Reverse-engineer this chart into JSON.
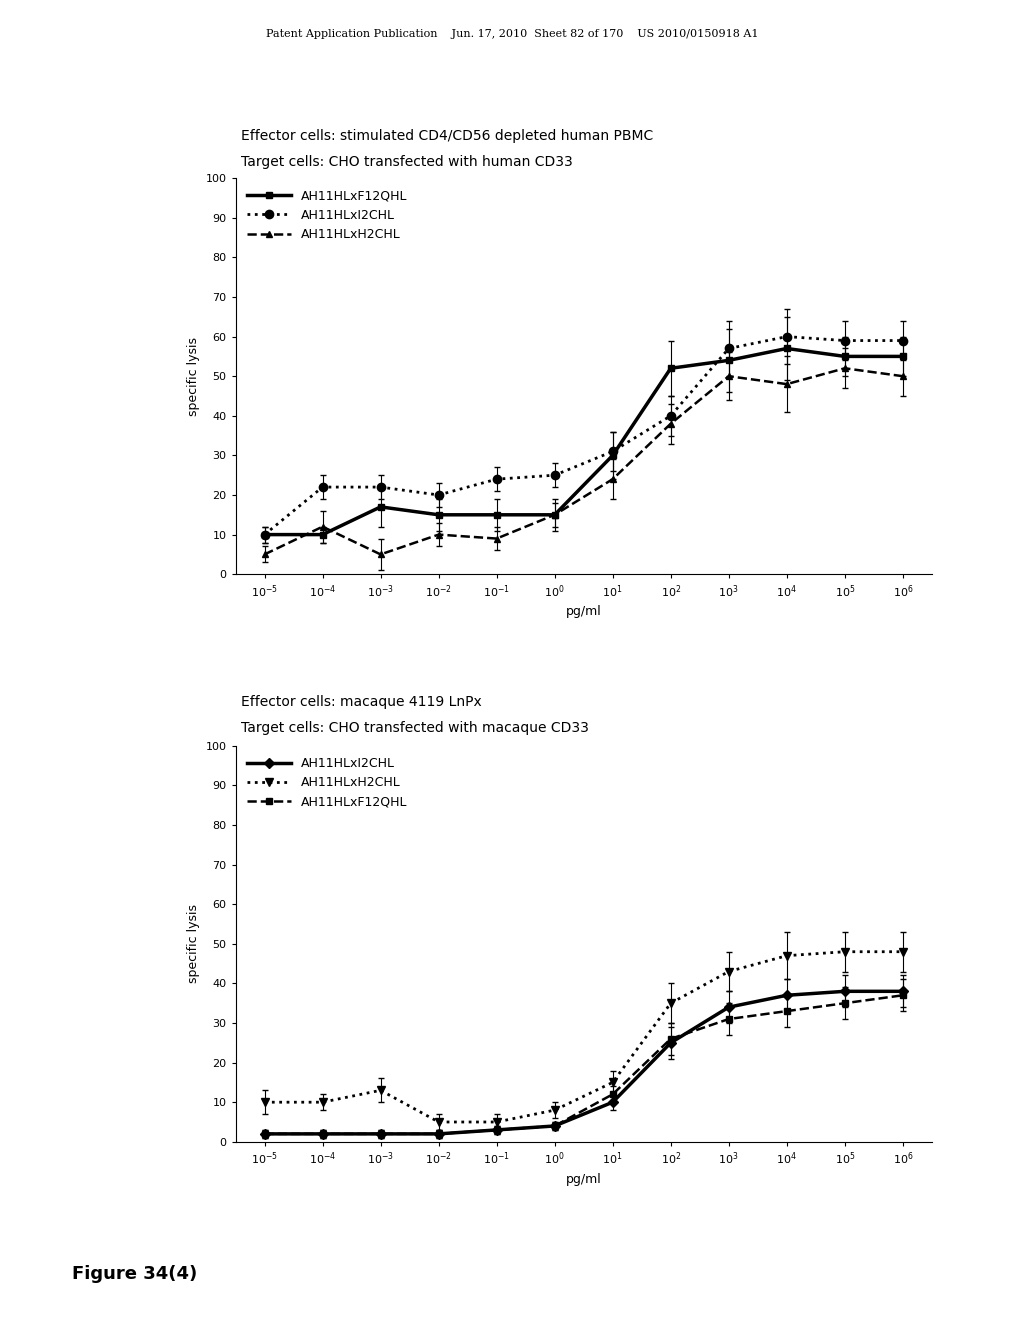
{
  "page_header": "Patent Application Publication    Jun. 17, 2010  Sheet 82 of 170    US 2010/0150918 A1",
  "figure_label": "Figure 34(4)",
  "plot1": {
    "title1": "Effector cells: stimulated CD4/CD56 depleted human PBMC",
    "title2": "Target cells: CHO transfected with human CD33",
    "ylabel": "specific lysis",
    "xlabel": "pg/ml",
    "ylim": [
      0,
      100
    ],
    "yticks": [
      0,
      10,
      20,
      30,
      40,
      50,
      60,
      70,
      80,
      90,
      100
    ],
    "series": [
      {
        "label": "AH11HLxF12QHL",
        "linestyle": "solid",
        "linewidth": 2.5,
        "marker": "s",
        "markersize": 5,
        "x": [
          -5,
          -4,
          -3,
          -2,
          -1,
          0,
          1,
          2,
          3,
          4,
          5,
          6
        ],
        "y": [
          10,
          10,
          17,
          15,
          15,
          15,
          30,
          52,
          54,
          57,
          55,
          55
        ],
        "yerr": [
          2,
          2,
          5,
          4,
          4,
          4,
          6,
          7,
          8,
          8,
          5,
          5
        ]
      },
      {
        "label": "AH11HLxI2CHL",
        "linestyle": "dotted",
        "linewidth": 2.0,
        "marker": "o",
        "markersize": 6,
        "x": [
          -5,
          -4,
          -3,
          -2,
          -1,
          0,
          1,
          2,
          3,
          4,
          5,
          6
        ],
        "y": [
          10,
          22,
          22,
          20,
          24,
          25,
          31,
          40,
          57,
          60,
          59,
          59
        ],
        "yerr": [
          2,
          3,
          3,
          3,
          3,
          3,
          5,
          5,
          7,
          7,
          5,
          5
        ]
      },
      {
        "label": "AH11HLxH2CHL",
        "linestyle": "dashed",
        "linewidth": 1.8,
        "marker": "^",
        "markersize": 5,
        "x": [
          -5,
          -4,
          -3,
          -2,
          -1,
          0,
          1,
          2,
          3,
          4,
          5,
          6
        ],
        "y": [
          5,
          12,
          5,
          10,
          9,
          15,
          24,
          38,
          50,
          48,
          52,
          50
        ],
        "yerr": [
          2,
          4,
          4,
          3,
          3,
          3,
          5,
          5,
          6,
          7,
          5,
          5
        ]
      }
    ]
  },
  "plot2": {
    "title1": "Effector cells: macaque 4119 LnPx",
    "title2": "Target cells: CHO transfected with macaque CD33",
    "ylabel": "specific lysis",
    "xlabel": "pg/ml",
    "ylim": [
      0,
      100
    ],
    "yticks": [
      0,
      10,
      20,
      30,
      40,
      50,
      60,
      70,
      80,
      90,
      100
    ],
    "series": [
      {
        "label": "AH11HLxI2CHL",
        "linestyle": "solid",
        "linewidth": 2.5,
        "marker": "D",
        "markersize": 5,
        "x": [
          -5,
          -4,
          -3,
          -2,
          -1,
          0,
          1,
          2,
          3,
          4,
          5,
          6
        ],
        "y": [
          2,
          2,
          2,
          2,
          3,
          4,
          10,
          25,
          34,
          37,
          38,
          38
        ],
        "yerr": [
          1,
          1,
          1,
          1,
          1,
          1,
          2,
          4,
          4,
          4,
          4,
          4
        ]
      },
      {
        "label": "AH11HLxH2CHL",
        "linestyle": "dotted",
        "linewidth": 2.0,
        "marker": "v",
        "markersize": 6,
        "x": [
          -5,
          -4,
          -3,
          -2,
          -1,
          0,
          1,
          2,
          3,
          4,
          5,
          6
        ],
        "y": [
          10,
          10,
          13,
          5,
          5,
          8,
          15,
          35,
          43,
          47,
          48,
          48
        ],
        "yerr": [
          3,
          2,
          3,
          2,
          2,
          2,
          3,
          5,
          5,
          6,
          5,
          5
        ]
      },
      {
        "label": "AH11HLxF12QHL",
        "linestyle": "dashed",
        "linewidth": 1.8,
        "marker": "s",
        "markersize": 5,
        "x": [
          -5,
          -4,
          -3,
          -2,
          -1,
          0,
          1,
          2,
          3,
          4,
          5,
          6
        ],
        "y": [
          2,
          2,
          2,
          2,
          3,
          4,
          12,
          26,
          31,
          33,
          35,
          37
        ],
        "yerr": [
          1,
          1,
          1,
          1,
          1,
          1,
          2,
          4,
          4,
          4,
          4,
          4
        ]
      }
    ]
  },
  "bg_color": "#ffffff",
  "line_color": "#000000",
  "font_size_title": 10,
  "font_size_axis": 9,
  "font_size_legend": 9,
  "font_size_tick": 8,
  "font_size_header": 8
}
